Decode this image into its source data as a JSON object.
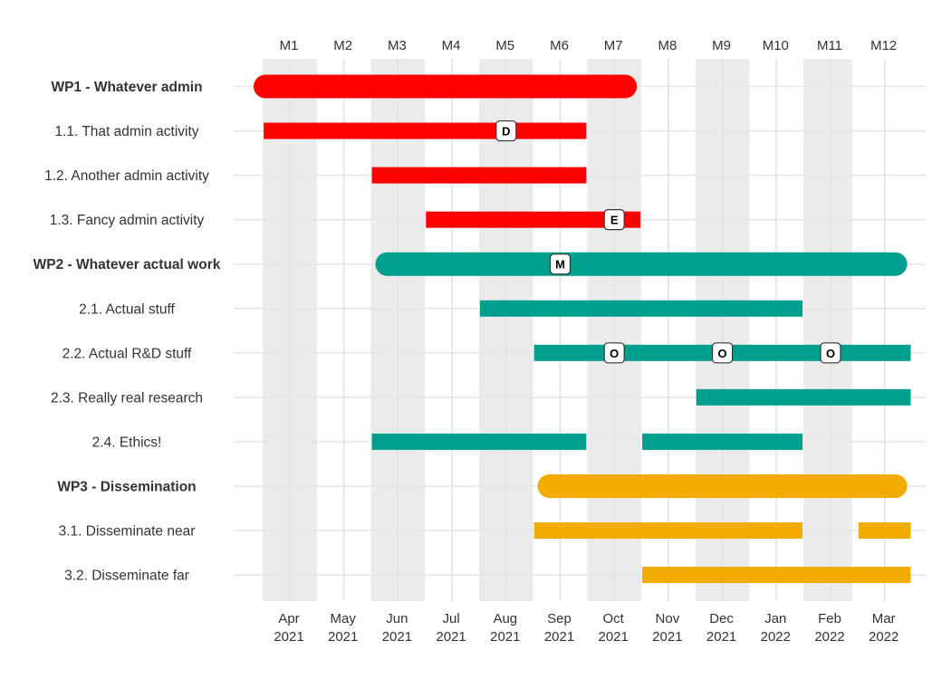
{
  "chart_data": {
    "type": "gantt",
    "title": "",
    "colors": {
      "WP1": "#ff0000",
      "WP2": "#009e8c",
      "WP3": "#f2ab00"
    },
    "time_axis": {
      "start_month": "2021-03",
      "end_month": "2022-03",
      "month_ticks": [
        {
          "line1": "Apr",
          "line2": "2021",
          "value": "2021-04"
        },
        {
          "line1": "May",
          "line2": "2021",
          "value": "2021-05"
        },
        {
          "line1": "Jun",
          "line2": "2021",
          "value": "2021-06"
        },
        {
          "line1": "Jul",
          "line2": "2021",
          "value": "2021-07"
        },
        {
          "line1": "Aug",
          "line2": "2021",
          "value": "2021-08"
        },
        {
          "line1": "Sep",
          "line2": "2021",
          "value": "2021-09"
        },
        {
          "line1": "Oct",
          "line2": "2021",
          "value": "2021-10"
        },
        {
          "line1": "Nov",
          "line2": "2021",
          "value": "2021-11"
        },
        {
          "line1": "Dec",
          "line2": "2021",
          "value": "2021-12"
        },
        {
          "line1": "Jan",
          "line2": "2022",
          "value": "2022-01"
        },
        {
          "line1": "Feb",
          "line2": "2022",
          "value": "2022-02"
        },
        {
          "line1": "Mar",
          "line2": "2022",
          "value": "2022-03"
        }
      ],
      "project_months": [
        "M1",
        "M2",
        "M3",
        "M4",
        "M5",
        "M6",
        "M7",
        "M8",
        "M9",
        "M10",
        "M11",
        "M12"
      ],
      "shaded_months": [
        1,
        3,
        5,
        7,
        9,
        11
      ]
    },
    "rows": [
      {
        "label": "WP1 - Whatever admin",
        "bold": true,
        "wp": "WP1",
        "segments": [
          {
            "start": 0.8,
            "end": 7.2
          }
        ],
        "rounded": true,
        "milestones": []
      },
      {
        "label": "1.1. That admin activity",
        "bold": false,
        "wp": "WP1",
        "segments": [
          {
            "start": 1.0,
            "end": 6.0
          }
        ],
        "milestones": [
          {
            "at": 5.0,
            "label": "D"
          }
        ]
      },
      {
        "label": "1.2. Another admin activity",
        "bold": false,
        "wp": "WP1",
        "segments": [
          {
            "start": 3.0,
            "end": 6.0
          }
        ],
        "milestones": []
      },
      {
        "label": "1.3. Fancy admin activity",
        "bold": false,
        "wp": "WP1",
        "segments": [
          {
            "start": 4.0,
            "end": 7.0
          }
        ],
        "milestones": [
          {
            "at": 7.0,
            "label": "E"
          }
        ]
      },
      {
        "label": "WP2 - Whatever actual work",
        "bold": true,
        "wp": "WP2",
        "segments": [
          {
            "start": 2.8,
            "end": 12.2
          }
        ],
        "rounded": true,
        "milestones": [
          {
            "at": 6.0,
            "label": "M"
          }
        ]
      },
      {
        "label": "2.1. Actual stuff",
        "bold": false,
        "wp": "WP2",
        "segments": [
          {
            "start": 5.0,
            "end": 10.0
          }
        ],
        "milestones": []
      },
      {
        "label": "2.2. Actual R&D stuff",
        "bold": false,
        "wp": "WP2",
        "segments": [
          {
            "start": 6.0,
            "end": 12.0
          }
        ],
        "milestones": [
          {
            "at": 7.0,
            "label": "O"
          },
          {
            "at": 9.0,
            "label": "O"
          },
          {
            "at": 11.0,
            "label": "O"
          }
        ]
      },
      {
        "label": "2.3. Really real research",
        "bold": false,
        "wp": "WP2",
        "segments": [
          {
            "start": 9.0,
            "end": 12.0
          }
        ],
        "milestones": []
      },
      {
        "label": "2.4. Ethics!",
        "bold": false,
        "wp": "WP2",
        "segments": [
          {
            "start": 3.0,
            "end": 6.0
          },
          {
            "start": 8.0,
            "end": 10.0
          }
        ],
        "milestones": []
      },
      {
        "label": "WP3 - Dissemination",
        "bold": true,
        "wp": "WP3",
        "segments": [
          {
            "start": 5.8,
            "end": 12.2
          }
        ],
        "rounded": true,
        "milestones": []
      },
      {
        "label": "3.1. Disseminate near",
        "bold": false,
        "wp": "WP3",
        "segments": [
          {
            "start": 6.0,
            "end": 10.0
          },
          {
            "start": 12.0,
            "end": 12.0
          }
        ],
        "milestones": []
      },
      {
        "label": "3.2. Disseminate far",
        "bold": false,
        "wp": "WP3",
        "segments": [
          {
            "start": 8.0,
            "end": 12.0
          }
        ],
        "milestones": []
      }
    ]
  }
}
